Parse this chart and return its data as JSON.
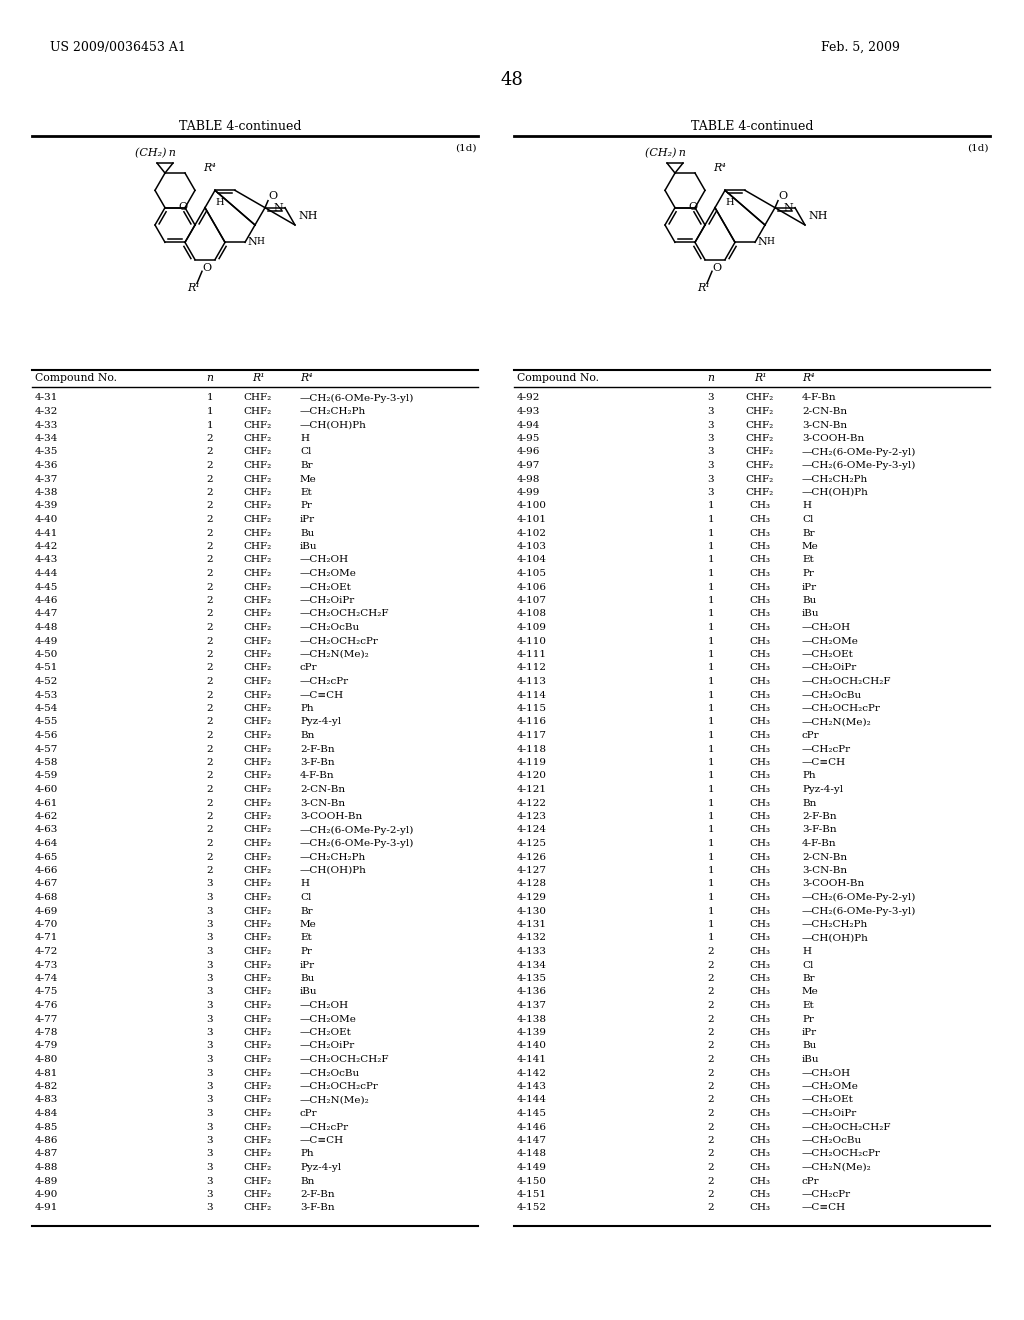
{
  "header_left": "US 2009/0036453 A1",
  "header_right": "Feb. 5, 2009",
  "page_number": "48",
  "table_title": "TABLE 4-continued",
  "compound_label": "(1d)",
  "left_table": {
    "rows": [
      [
        "4-31",
        "1",
        "CHF₂",
        "—CH₂(6-OMe-Py-3-yl)"
      ],
      [
        "4-32",
        "1",
        "CHF₂",
        "—CH₂CH₂Ph"
      ],
      [
        "4-33",
        "1",
        "CHF₂",
        "—CH(OH)Ph"
      ],
      [
        "4-34",
        "2",
        "CHF₂",
        "H"
      ],
      [
        "4-35",
        "2",
        "CHF₂",
        "Cl"
      ],
      [
        "4-36",
        "2",
        "CHF₂",
        "Br"
      ],
      [
        "4-37",
        "2",
        "CHF₂",
        "Me"
      ],
      [
        "4-38",
        "2",
        "CHF₂",
        "Et"
      ],
      [
        "4-39",
        "2",
        "CHF₂",
        "Pr"
      ],
      [
        "4-40",
        "2",
        "CHF₂",
        "iPr"
      ],
      [
        "4-41",
        "2",
        "CHF₂",
        "Bu"
      ],
      [
        "4-42",
        "2",
        "CHF₂",
        "iBu"
      ],
      [
        "4-43",
        "2",
        "CHF₂",
        "—CH₂OH"
      ],
      [
        "4-44",
        "2",
        "CHF₂",
        "—CH₂OMe"
      ],
      [
        "4-45",
        "2",
        "CHF₂",
        "—CH₂OEt"
      ],
      [
        "4-46",
        "2",
        "CHF₂",
        "—CH₂OiPr"
      ],
      [
        "4-47",
        "2",
        "CHF₂",
        "—CH₂OCH₂CH₂F"
      ],
      [
        "4-48",
        "2",
        "CHF₂",
        "—CH₂OcBu"
      ],
      [
        "4-49",
        "2",
        "CHF₂",
        "—CH₂OCH₂cPr"
      ],
      [
        "4-50",
        "2",
        "CHF₂",
        "—CH₂N(Me)₂"
      ],
      [
        "4-51",
        "2",
        "CHF₂",
        "cPr"
      ],
      [
        "4-52",
        "2",
        "CHF₂",
        "—CH₂cPr"
      ],
      [
        "4-53",
        "2",
        "CHF₂",
        "—C≡CH"
      ],
      [
        "4-54",
        "2",
        "CHF₂",
        "Ph"
      ],
      [
        "4-55",
        "2",
        "CHF₂",
        "Pyz-4-yl"
      ],
      [
        "4-56",
        "2",
        "CHF₂",
        "Bn"
      ],
      [
        "4-57",
        "2",
        "CHF₂",
        "2-F-Bn"
      ],
      [
        "4-58",
        "2",
        "CHF₂",
        "3-F-Bn"
      ],
      [
        "4-59",
        "2",
        "CHF₂",
        "4-F-Bn"
      ],
      [
        "4-60",
        "2",
        "CHF₂",
        "2-CN-Bn"
      ],
      [
        "4-61",
        "2",
        "CHF₂",
        "3-CN-Bn"
      ],
      [
        "4-62",
        "2",
        "CHF₂",
        "3-COOH-Bn"
      ],
      [
        "4-63",
        "2",
        "CHF₂",
        "—CH₂(6-OMe-Py-2-yl)"
      ],
      [
        "4-64",
        "2",
        "CHF₂",
        "—CH₂(6-OMe-Py-3-yl)"
      ],
      [
        "4-65",
        "2",
        "CHF₂",
        "—CH₂CH₂Ph"
      ],
      [
        "4-66",
        "2",
        "CHF₂",
        "—CH(OH)Ph"
      ],
      [
        "4-67",
        "3",
        "CHF₂",
        "H"
      ],
      [
        "4-68",
        "3",
        "CHF₂",
        "Cl"
      ],
      [
        "4-69",
        "3",
        "CHF₂",
        "Br"
      ],
      [
        "4-70",
        "3",
        "CHF₂",
        "Me"
      ],
      [
        "4-71",
        "3",
        "CHF₂",
        "Et"
      ],
      [
        "4-72",
        "3",
        "CHF₂",
        "Pr"
      ],
      [
        "4-73",
        "3",
        "CHF₂",
        "iPr"
      ],
      [
        "4-74",
        "3",
        "CHF₂",
        "Bu"
      ],
      [
        "4-75",
        "3",
        "CHF₂",
        "iBu"
      ],
      [
        "4-76",
        "3",
        "CHF₂",
        "—CH₂OH"
      ],
      [
        "4-77",
        "3",
        "CHF₂",
        "—CH₂OMe"
      ],
      [
        "4-78",
        "3",
        "CHF₂",
        "—CH₂OEt"
      ],
      [
        "4-79",
        "3",
        "CHF₂",
        "—CH₂OiPr"
      ],
      [
        "4-80",
        "3",
        "CHF₂",
        "—CH₂OCH₂CH₂F"
      ],
      [
        "4-81",
        "3",
        "CHF₂",
        "—CH₂OcBu"
      ],
      [
        "4-82",
        "3",
        "CHF₂",
        "—CH₂OCH₂cPr"
      ],
      [
        "4-83",
        "3",
        "CHF₂",
        "—CH₂N(Me)₂"
      ],
      [
        "4-84",
        "3",
        "CHF₂",
        "cPr"
      ],
      [
        "4-85",
        "3",
        "CHF₂",
        "—CH₂cPr"
      ],
      [
        "4-86",
        "3",
        "CHF₂",
        "—C≡CH"
      ],
      [
        "4-87",
        "3",
        "CHF₂",
        "Ph"
      ],
      [
        "4-88",
        "3",
        "CHF₂",
        "Pyz-4-yl"
      ],
      [
        "4-89",
        "3",
        "CHF₂",
        "Bn"
      ],
      [
        "4-90",
        "3",
        "CHF₂",
        "2-F-Bn"
      ],
      [
        "4-91",
        "3",
        "CHF₂",
        "3-F-Bn"
      ]
    ]
  },
  "right_table": {
    "rows": [
      [
        "4-92",
        "3",
        "CHF₂",
        "4-F-Bn"
      ],
      [
        "4-93",
        "3",
        "CHF₂",
        "2-CN-Bn"
      ],
      [
        "4-94",
        "3",
        "CHF₂",
        "3-CN-Bn"
      ],
      [
        "4-95",
        "3",
        "CHF₂",
        "3-COOH-Bn"
      ],
      [
        "4-96",
        "3",
        "CHF₂",
        "—CH₂(6-OMe-Py-2-yl)"
      ],
      [
        "4-97",
        "3",
        "CHF₂",
        "—CH₂(6-OMe-Py-3-yl)"
      ],
      [
        "4-98",
        "3",
        "CHF₂",
        "—CH₂CH₂Ph"
      ],
      [
        "4-99",
        "3",
        "CHF₂",
        "—CH(OH)Ph"
      ],
      [
        "4-100",
        "1",
        "CH₃",
        "H"
      ],
      [
        "4-101",
        "1",
        "CH₃",
        "Cl"
      ],
      [
        "4-102",
        "1",
        "CH₃",
        "Br"
      ],
      [
        "4-103",
        "1",
        "CH₃",
        "Me"
      ],
      [
        "4-104",
        "1",
        "CH₃",
        "Et"
      ],
      [
        "4-105",
        "1",
        "CH₃",
        "Pr"
      ],
      [
        "4-106",
        "1",
        "CH₃",
        "iPr"
      ],
      [
        "4-107",
        "1",
        "CH₃",
        "Bu"
      ],
      [
        "4-108",
        "1",
        "CH₃",
        "iBu"
      ],
      [
        "4-109",
        "1",
        "CH₃",
        "—CH₂OH"
      ],
      [
        "4-110",
        "1",
        "CH₃",
        "—CH₂OMe"
      ],
      [
        "4-111",
        "1",
        "CH₃",
        "—CH₂OEt"
      ],
      [
        "4-112",
        "1",
        "CH₃",
        "—CH₂OiPr"
      ],
      [
        "4-113",
        "1",
        "CH₃",
        "—CH₂OCH₂CH₂F"
      ],
      [
        "4-114",
        "1",
        "CH₃",
        "—CH₂OcBu"
      ],
      [
        "4-115",
        "1",
        "CH₃",
        "—CH₂OCH₂cPr"
      ],
      [
        "4-116",
        "1",
        "CH₃",
        "—CH₂N(Me)₂"
      ],
      [
        "4-117",
        "1",
        "CH₃",
        "cPr"
      ],
      [
        "4-118",
        "1",
        "CH₃",
        "—CH₂cPr"
      ],
      [
        "4-119",
        "1",
        "CH₃",
        "—C≡CH"
      ],
      [
        "4-120",
        "1",
        "CH₃",
        "Ph"
      ],
      [
        "4-121",
        "1",
        "CH₃",
        "Pyz-4-yl"
      ],
      [
        "4-122",
        "1",
        "CH₃",
        "Bn"
      ],
      [
        "4-123",
        "1",
        "CH₃",
        "2-F-Bn"
      ],
      [
        "4-124",
        "1",
        "CH₃",
        "3-F-Bn"
      ],
      [
        "4-125",
        "1",
        "CH₃",
        "4-F-Bn"
      ],
      [
        "4-126",
        "1",
        "CH₃",
        "2-CN-Bn"
      ],
      [
        "4-127",
        "1",
        "CH₃",
        "3-CN-Bn"
      ],
      [
        "4-128",
        "1",
        "CH₃",
        "3-COOH-Bn"
      ],
      [
        "4-129",
        "1",
        "CH₃",
        "—CH₂(6-OMe-Py-2-yl)"
      ],
      [
        "4-130",
        "1",
        "CH₃",
        "—CH₂(6-OMe-Py-3-yl)"
      ],
      [
        "4-131",
        "1",
        "CH₃",
        "—CH₂CH₂Ph"
      ],
      [
        "4-132",
        "1",
        "CH₃",
        "—CH(OH)Ph"
      ],
      [
        "4-133",
        "2",
        "CH₃",
        "H"
      ],
      [
        "4-134",
        "2",
        "CH₃",
        "Cl"
      ],
      [
        "4-135",
        "2",
        "CH₃",
        "Br"
      ],
      [
        "4-136",
        "2",
        "CH₃",
        "Me"
      ],
      [
        "4-137",
        "2",
        "CH₃",
        "Et"
      ],
      [
        "4-138",
        "2",
        "CH₃",
        "Pr"
      ],
      [
        "4-139",
        "2",
        "CH₃",
        "iPr"
      ],
      [
        "4-140",
        "2",
        "CH₃",
        "Bu"
      ],
      [
        "4-141",
        "2",
        "CH₃",
        "iBu"
      ],
      [
        "4-142",
        "2",
        "CH₃",
        "—CH₂OH"
      ],
      [
        "4-143",
        "2",
        "CH₃",
        "—CH₂OMe"
      ],
      [
        "4-144",
        "2",
        "CH₃",
        "—CH₂OEt"
      ],
      [
        "4-145",
        "2",
        "CH₃",
        "—CH₂OiPr"
      ],
      [
        "4-146",
        "2",
        "CH₃",
        "—CH₂OCH₂CH₂F"
      ],
      [
        "4-147",
        "2",
        "CH₃",
        "—CH₂OcBu"
      ],
      [
        "4-148",
        "2",
        "CH₃",
        "—CH₂OCH₂cPr"
      ],
      [
        "4-149",
        "2",
        "CH₃",
        "—CH₂N(Me)₂"
      ],
      [
        "4-150",
        "2",
        "CH₃",
        "cPr"
      ],
      [
        "4-151",
        "2",
        "CH₃",
        "—CH₂cPr"
      ],
      [
        "4-152",
        "2",
        "CH₃",
        "—C≡CH"
      ]
    ]
  }
}
